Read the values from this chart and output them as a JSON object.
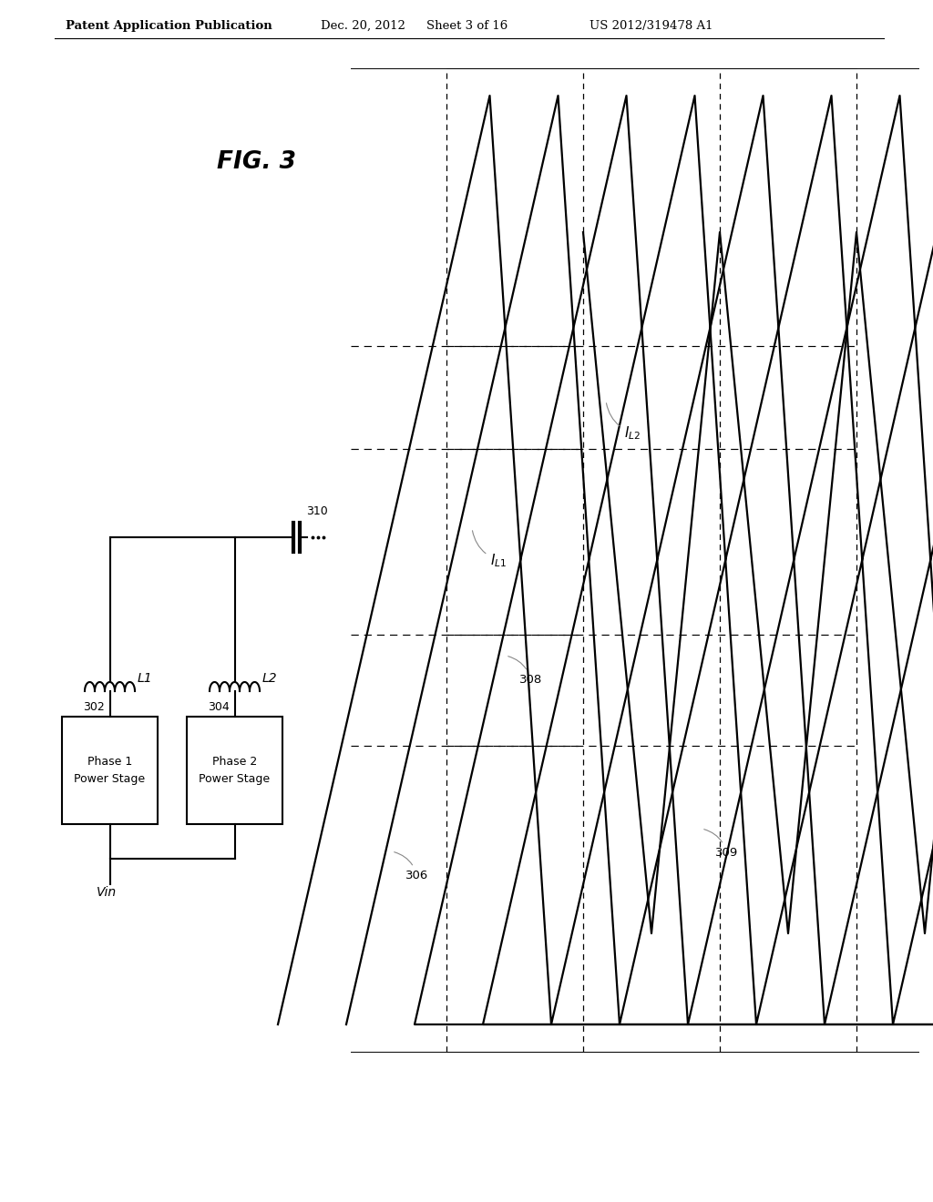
{
  "bg_color": "#ffffff",
  "header_text": "Patent Application Publication",
  "header_date": "Dec. 20, 2012",
  "header_sheet": "Sheet 3 of 16",
  "header_patent": "US 2012/319478 A1",
  "fig_label": "FIG. 3",
  "schematic": {
    "box1_label1": "Phase 1",
    "box1_label2": "Power Stage",
    "box2_label1": "Phase 2",
    "box2_label2": "Power Stage",
    "ind1_label": "L1",
    "ind2_label": "L2",
    "node302": "302",
    "node304": "304",
    "node310": "310",
    "vin_label": "Vin"
  },
  "waveform": {
    "label306": "306",
    "label308": "308",
    "label309": "309",
    "label_IL1": "$I_{L1}$",
    "label_IL2": "$I_{L2}$"
  }
}
